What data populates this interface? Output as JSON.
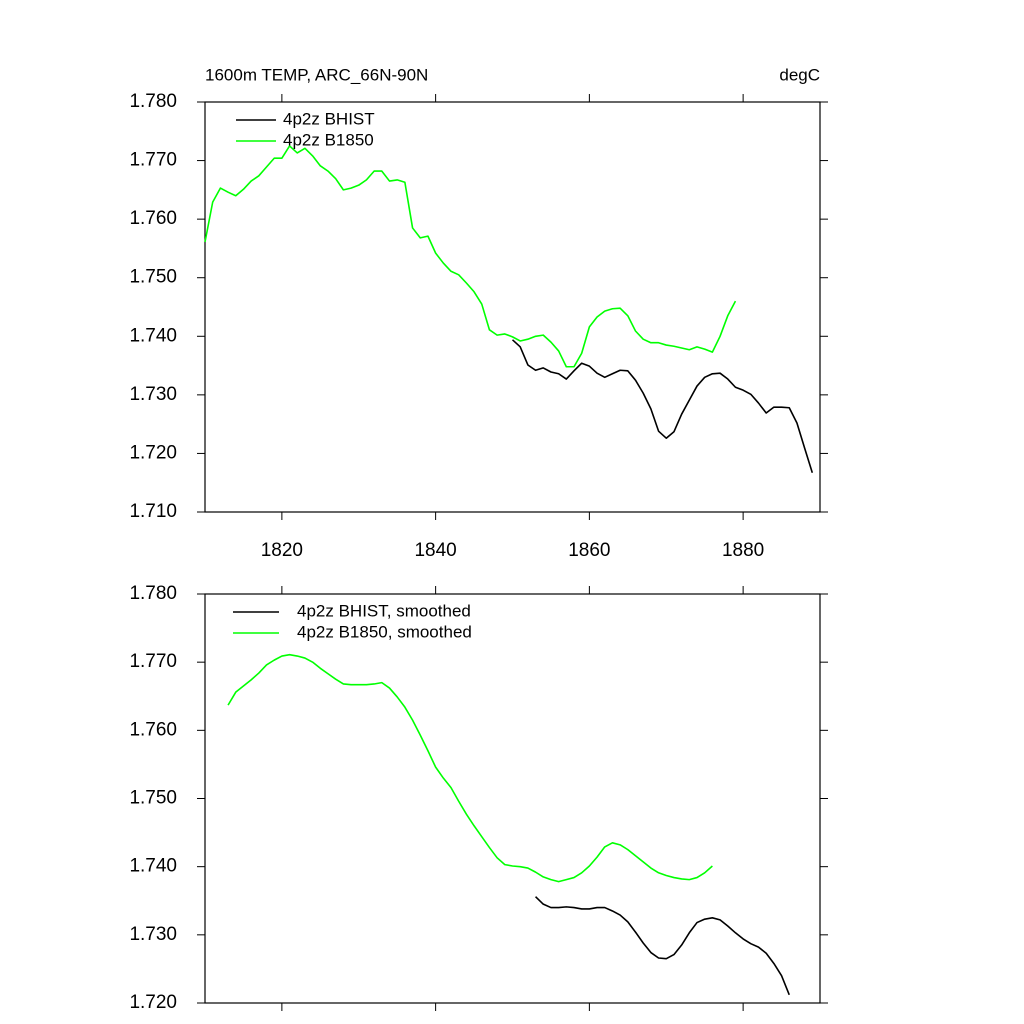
{
  "chart_data": [
    {
      "type": "line",
      "title_left": "1600m TEMP, ARC_66N-90N",
      "title_right": "degC",
      "x": [
        1810,
        1811,
        1812,
        1813,
        1814,
        1815,
        1816,
        1817,
        1818,
        1819,
        1820,
        1821,
        1822,
        1823,
        1824,
        1825,
        1826,
        1827,
        1828,
        1829,
        1830,
        1831,
        1832,
        1833,
        1834,
        1835,
        1836,
        1837,
        1838,
        1839,
        1840,
        1841,
        1842,
        1843,
        1844,
        1845,
        1846,
        1847,
        1848,
        1849,
        1850,
        1851,
        1852,
        1853,
        1854,
        1855,
        1856,
        1857,
        1858,
        1859,
        1860,
        1861,
        1862,
        1863,
        1864,
        1865,
        1866,
        1867,
        1868,
        1869,
        1870,
        1871,
        1872,
        1873,
        1874,
        1875,
        1876,
        1877,
        1878,
        1879,
        1880,
        1881,
        1882,
        1883,
        1884,
        1885,
        1886,
        1887,
        1888,
        1889
      ],
      "series": [
        {
          "name": "4p2z BHIST",
          "color": "#000000",
          "values": [
            null,
            null,
            null,
            null,
            null,
            null,
            null,
            null,
            null,
            null,
            null,
            null,
            null,
            null,
            null,
            null,
            null,
            null,
            null,
            null,
            null,
            null,
            null,
            null,
            null,
            null,
            null,
            null,
            null,
            null,
            null,
            null,
            null,
            null,
            null,
            null,
            null,
            null,
            null,
            null,
            1.7394,
            1.7382,
            1.7351,
            1.7342,
            1.7346,
            1.7339,
            1.7336,
            1.7327,
            1.7341,
            1.7354,
            1.7349,
            1.7337,
            1.733,
            1.7336,
            1.7342,
            1.7341,
            1.7325,
            1.7303,
            1.7276,
            1.7238,
            1.7226,
            1.7237,
            1.7267,
            1.7291,
            1.7315,
            1.733,
            1.7336,
            1.7337,
            1.7327,
            1.7313,
            1.7308,
            1.7301,
            1.7286,
            1.7269,
            1.7279,
            1.7279,
            1.7278,
            1.7252,
            1.7209,
            1.7167
          ]
        },
        {
          "name": "4p2z B1850",
          "color": "#00ff00",
          "values": [
            1.7561,
            1.7629,
            1.7653,
            1.7646,
            1.764,
            1.7651,
            1.7665,
            1.7674,
            1.7689,
            1.7704,
            1.7704,
            1.7725,
            1.7713,
            1.7721,
            1.7708,
            1.7691,
            1.7682,
            1.7669,
            1.765,
            1.7653,
            1.7658,
            1.7667,
            1.7682,
            1.7682,
            1.7665,
            1.7667,
            1.7663,
            1.7585,
            1.7568,
            1.7571,
            1.7542,
            1.7525,
            1.7511,
            1.7505,
            1.7491,
            1.7476,
            1.7455,
            1.7411,
            1.7402,
            1.7404,
            1.7399,
            1.7392,
            1.7395,
            1.74,
            1.7402,
            1.739,
            1.7375,
            1.7348,
            1.7348,
            1.7371,
            1.7416,
            1.7433,
            1.7443,
            1.7447,
            1.7448,
            1.7435,
            1.7409,
            1.7395,
            1.7389,
            1.7389,
            1.7385,
            1.7383,
            1.738,
            1.7377,
            1.7382,
            1.7378,
            1.7373,
            1.74,
            1.7435,
            1.746,
            null,
            null,
            null,
            null,
            null,
            null,
            null,
            null,
            null,
            null
          ]
        }
      ],
      "xlim": [
        1810,
        1890
      ],
      "xticks": [
        1820,
        1840,
        1860,
        1880
      ],
      "xtick_labels": true,
      "ylim": [
        1.71,
        1.78
      ],
      "yticks": [
        {
          "value": 1.71,
          "label": "1.710"
        },
        {
          "value": 1.72,
          "label": "1.720"
        },
        {
          "value": 1.73,
          "label": "1.730"
        },
        {
          "value": 1.74,
          "label": "1.740"
        },
        {
          "value": 1.75,
          "label": "1.750"
        },
        {
          "value": 1.76,
          "label": "1.760"
        },
        {
          "value": 1.77,
          "label": "1.770"
        },
        {
          "value": 1.78,
          "label": "1.780"
        }
      ],
      "legend": "upper-left",
      "grid": false
    },
    {
      "type": "line",
      "x": [
        1813,
        1814,
        1815,
        1816,
        1817,
        1818,
        1819,
        1820,
        1821,
        1822,
        1823,
        1824,
        1825,
        1826,
        1827,
        1828,
        1829,
        1830,
        1831,
        1832,
        1833,
        1834,
        1835,
        1836,
        1837,
        1838,
        1839,
        1840,
        1841,
        1842,
        1843,
        1844,
        1845,
        1846,
        1847,
        1848,
        1849,
        1850,
        1851,
        1852,
        1853,
        1854,
        1855,
        1856,
        1857,
        1858,
        1859,
        1860,
        1861,
        1862,
        1863,
        1864,
        1865,
        1866,
        1867,
        1868,
        1869,
        1870,
        1871,
        1872,
        1873,
        1874,
        1875,
        1876,
        1877,
        1878,
        1879,
        1880,
        1881,
        1882,
        1883,
        1884,
        1885,
        1886
      ],
      "series": [
        {
          "name": "4p2z BHIST, smoothed",
          "color": "#000000",
          "values": [
            null,
            null,
            null,
            null,
            null,
            null,
            null,
            null,
            null,
            null,
            null,
            null,
            null,
            null,
            null,
            null,
            null,
            null,
            null,
            null,
            null,
            null,
            null,
            null,
            null,
            null,
            null,
            null,
            null,
            null,
            null,
            null,
            null,
            null,
            null,
            null,
            null,
            null,
            null,
            null,
            1.7356,
            1.7345,
            1.734,
            1.734,
            1.7341,
            1.734,
            1.7338,
            1.7338,
            1.734,
            1.734,
            1.7335,
            1.7329,
            1.7319,
            1.7304,
            1.7288,
            1.7274,
            1.7266,
            1.7265,
            1.7271,
            1.7285,
            1.7303,
            1.7318,
            1.7323,
            1.7325,
            1.7322,
            1.7313,
            1.7303,
            1.7294,
            1.7287,
            1.7282,
            1.7273,
            1.7258,
            1.724,
            1.7212
          ]
        },
        {
          "name": "4p2z B1850, smoothed",
          "color": "#00ff00",
          "values": [
            1.7637,
            1.7656,
            1.7665,
            1.7674,
            1.7684,
            1.7696,
            1.7703,
            1.7709,
            1.7711,
            1.7709,
            1.7706,
            1.77,
            1.7691,
            1.7683,
            1.7675,
            1.7668,
            1.7667,
            1.7667,
            1.7667,
            1.7668,
            1.767,
            1.7662,
            1.7649,
            1.7634,
            1.7615,
            1.7593,
            1.757,
            1.7546,
            1.753,
            1.7516,
            1.7496,
            1.7477,
            1.746,
            1.7444,
            1.7428,
            1.7413,
            1.7403,
            1.7401,
            1.74,
            1.7398,
            1.7392,
            1.7385,
            1.7381,
            1.7378,
            1.7381,
            1.7384,
            1.7391,
            1.7401,
            1.7414,
            1.7429,
            1.7435,
            1.7432,
            1.7425,
            1.7416,
            1.7407,
            1.7398,
            1.7391,
            1.7387,
            1.7384,
            1.7382,
            1.7381,
            1.7384,
            1.7391,
            1.7401,
            null,
            null,
            null,
            null,
            null,
            null,
            null,
            null,
            null,
            null
          ]
        }
      ],
      "xlim": [
        1810,
        1890
      ],
      "xticks": [
        1820,
        1840,
        1860,
        1880
      ],
      "xtick_labels": false,
      "ylim": [
        1.72,
        1.78
      ],
      "yticks": [
        {
          "value": 1.72,
          "label": "1.720"
        },
        {
          "value": 1.73,
          "label": "1.730"
        },
        {
          "value": 1.74,
          "label": "1.740"
        },
        {
          "value": 1.75,
          "label": "1.750"
        },
        {
          "value": 1.76,
          "label": "1.760"
        },
        {
          "value": 1.77,
          "label": "1.770"
        },
        {
          "value": 1.78,
          "label": "1.780"
        }
      ],
      "legend": "upper-left",
      "grid": false
    }
  ]
}
